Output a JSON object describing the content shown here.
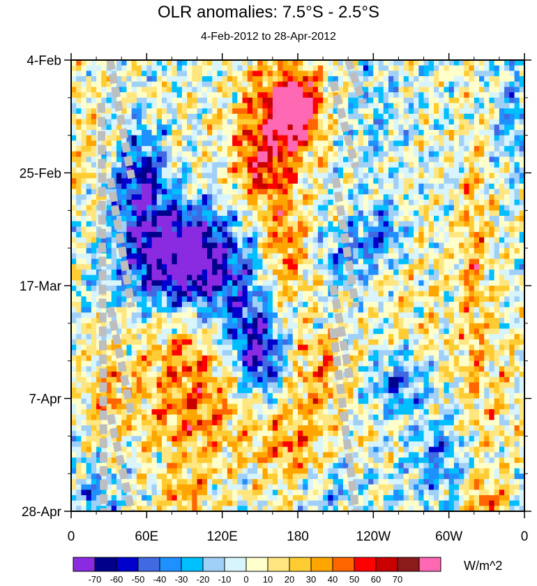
{
  "chart_data": {
    "type": "heatmap",
    "title": "OLR anomalies: 7.5°S - 2.5°S",
    "subtitle": "4-Feb-2012 to 28-Apr-2012",
    "xlabel": "",
    "ylabel": "",
    "x_ticks": [
      {
        "lon": 0,
        "label": "0"
      },
      {
        "lon": 60,
        "label": "60E"
      },
      {
        "lon": 120,
        "label": "120E"
      },
      {
        "lon": 180,
        "label": "180"
      },
      {
        "lon": 240,
        "label": "120W"
      },
      {
        "lon": 300,
        "label": "60W"
      },
      {
        "lon": 360,
        "label": "0"
      }
    ],
    "y_ticks": [
      {
        "day": 0,
        "label": "4-Feb"
      },
      {
        "day": 21,
        "label": "25-Feb"
      },
      {
        "day": 42,
        "label": "17-Mar"
      },
      {
        "day": 63,
        "label": "7-Apr"
      },
      {
        "day": 84,
        "label": "28-Apr"
      }
    ],
    "xlim": [
      0,
      360
    ],
    "ylim": [
      0,
      84
    ],
    "y_reversed": true,
    "levels": [
      -70,
      -60,
      -50,
      -40,
      -30,
      -20,
      -10,
      0,
      10,
      20,
      30,
      40,
      50,
      60,
      70
    ],
    "colorbar_colors": [
      "#8a2be2",
      "#00008b",
      "#0000cd",
      "#4169e1",
      "#1e90ff",
      "#00bfff",
      "#a0d0f8",
      "#d8f4fc",
      "#ffffcc",
      "#ffe680",
      "#ffcc33",
      "#ffa500",
      "#ff6600",
      "#ff0000",
      "#c80000",
      "#8b1a1a",
      "#ff69b4"
    ],
    "units": "W/m^2",
    "missing_color": "#bebebe",
    "features": [
      {
        "lon": 55,
        "day": 22,
        "sx": 14,
        "sy": 6,
        "value": -60
      },
      {
        "lon": 70,
        "day": 37,
        "sx": 30,
        "sy": 7,
        "value": -55
      },
      {
        "lon": 95,
        "day": 36,
        "sx": 22,
        "sy": 6,
        "value": -50
      },
      {
        "lon": 115,
        "day": 42,
        "sx": 30,
        "sy": 7,
        "value": -40
      },
      {
        "lon": 150,
        "day": 56,
        "sx": 12,
        "sy": 5,
        "value": -55
      },
      {
        "lon": 140,
        "day": 50,
        "sx": 15,
        "sy": 6,
        "value": -30
      },
      {
        "lon": 165,
        "day": 10,
        "sx": 22,
        "sy": 7,
        "value": 55
      },
      {
        "lon": 180,
        "day": 9,
        "sx": 12,
        "sy": 4,
        "value": 70
      },
      {
        "lon": 150,
        "day": 20,
        "sx": 14,
        "sy": 5,
        "value": 45
      },
      {
        "lon": 170,
        "day": 35,
        "sx": 12,
        "sy": 8,
        "value": 45
      },
      {
        "lon": 90,
        "day": 50,
        "sx": 28,
        "sy": 9,
        "value": 35
      },
      {
        "lon": 100,
        "day": 66,
        "sx": 28,
        "sy": 7,
        "value": 35
      },
      {
        "lon": 30,
        "day": 62,
        "sx": 14,
        "sy": 5,
        "value": 30
      },
      {
        "lon": 175,
        "day": 72,
        "sx": 20,
        "sy": 6,
        "value": 35
      },
      {
        "lon": 200,
        "day": 58,
        "sx": 16,
        "sy": 6,
        "value": 30
      },
      {
        "lon": 250,
        "day": 33,
        "sx": 12,
        "sy": 4,
        "value": -40
      },
      {
        "lon": 220,
        "day": 36,
        "sx": 14,
        "sy": 4,
        "value": -35
      },
      {
        "lon": 260,
        "day": 60,
        "sx": 14,
        "sy": 4,
        "value": -45
      },
      {
        "lon": 290,
        "day": 74,
        "sx": 16,
        "sy": 6,
        "value": -30
      },
      {
        "lon": 320,
        "day": 38,
        "sx": 8,
        "sy": 16,
        "value": 30
      },
      {
        "lon": 350,
        "day": 10,
        "sx": 12,
        "sy": 8,
        "value": -25
      },
      {
        "lon": 240,
        "day": 12,
        "sx": 20,
        "sy": 10,
        "value": -15
      },
      {
        "lon": 210,
        "day": 80,
        "sx": 20,
        "sy": 5,
        "value": -20
      },
      {
        "lon": 330,
        "day": 82,
        "sx": 10,
        "sy": 3,
        "value": 40
      },
      {
        "lon": 20,
        "day": 80,
        "sx": 15,
        "sy": 4,
        "value": -25
      },
      {
        "lon": 90,
        "day": 82,
        "sx": 14,
        "sy": 4,
        "value": 30
      },
      {
        "lon": 10,
        "day": 15,
        "sx": 12,
        "sy": 10,
        "value": 15
      },
      {
        "lon": 270,
        "day": 45,
        "sx": 22,
        "sy": 12,
        "value": 12
      },
      {
        "lon": 335,
        "day": 62,
        "sx": 18,
        "sy": 10,
        "value": 15
      }
    ],
    "missing_bands": [
      {
        "lon_start": 31,
        "day_start": 0,
        "lon_end": 48,
        "day_end": 22
      },
      {
        "lon_start": 31,
        "day_start": 22,
        "lon_end": 48,
        "day_end": 46
      },
      {
        "lon_start": 31,
        "day_start": 46,
        "lon_end": 48,
        "day_end": 66
      },
      {
        "lon_start": 31,
        "day_start": 66,
        "lon_end": 48,
        "day_end": 84
      },
      {
        "lon_start": 24,
        "day_start": 8,
        "lon_end": 26,
        "day_end": 84
      },
      {
        "lon_start": 220,
        "day_start": 0,
        "lon_end": 232,
        "day_end": 8
      },
      {
        "lon_start": 208,
        "day_start": 4,
        "lon_end": 226,
        "day_end": 20
      },
      {
        "lon_start": 210,
        "day_start": 22,
        "lon_end": 226,
        "day_end": 46
      },
      {
        "lon_start": 208,
        "day_start": 42,
        "lon_end": 222,
        "day_end": 60
      },
      {
        "lon_start": 208,
        "day_start": 50,
        "lon_end": 226,
        "day_end": 84
      }
    ]
  }
}
